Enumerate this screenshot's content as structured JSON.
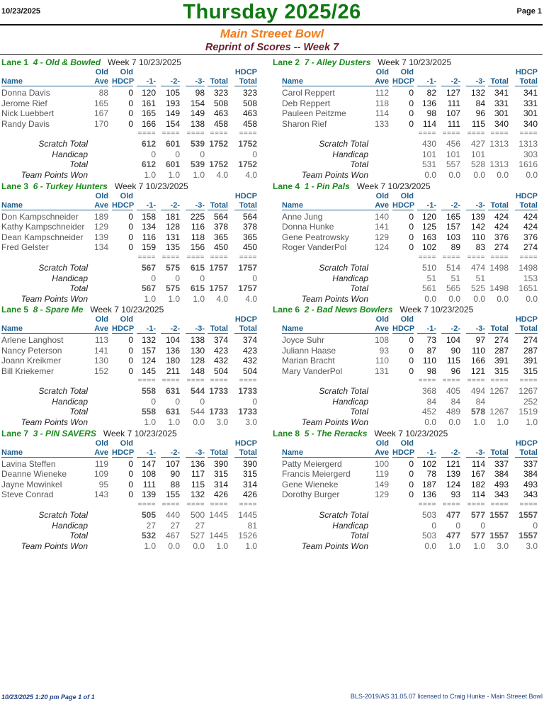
{
  "header": {
    "date": "10/23/2025",
    "title": "Thursday  2025/26",
    "page": "Page 1",
    "subtitle": "Main Streeet Bowl",
    "report": "Reprint of Scores -- Week 7"
  },
  "columns": {
    "name": "Name",
    "old_ave_top": "Old",
    "old_ave": "Ave",
    "old_hdcp_top": "Old",
    "old_hdcp": "HDCP",
    "g1": "-1-",
    "g2": "-2-",
    "g3": "-3-",
    "total": "Total",
    "hdcp_total_top": "HDCP",
    "hdcp_total": "Total",
    "separator": "===="
  },
  "summary_labels": {
    "scratch": "Scratch Total",
    "handicap": "Handicap",
    "total": "Total",
    "points": "Team Points Won"
  },
  "colors": {
    "title": "#0f7a12",
    "subtitle": "#ee7d1c",
    "report": "#6a1e2c",
    "lane_title": "#1a8a1a",
    "column_header": "#1e5e8c",
    "footer": "#1c3f86"
  },
  "lanes": [
    {
      "lane": "Lane 1",
      "team": "4 - Old & Bowled",
      "week": "Week 7  10/23/2025",
      "players": [
        {
          "name": "Donna Davis",
          "ave": "88",
          "hdcp": "0",
          "g1": "120",
          "g2": "105",
          "g3": "98",
          "total": "323",
          "hdcp_total": "323"
        },
        {
          "name": "Jerome Rief",
          "ave": "165",
          "hdcp": "0",
          "g1": "161",
          "g2": "193",
          "g3": "154",
          "total": "508",
          "hdcp_total": "508"
        },
        {
          "name": "Nick Luebbert",
          "ave": "167",
          "hdcp": "0",
          "g1": "165",
          "g2": "149",
          "g3": "149",
          "total": "463",
          "hdcp_total": "463"
        },
        {
          "name": "Randy Davis",
          "ave": "170",
          "hdcp": "0",
          "g1": "166",
          "g2": "154",
          "g3": "138",
          "total": "458",
          "hdcp_total": "458"
        }
      ],
      "scratch": {
        "values": [
          "612",
          "601",
          "539",
          "1752",
          "1752"
        ],
        "bold": [
          true,
          true,
          true,
          true,
          true
        ]
      },
      "handicap": {
        "values": [
          "0",
          "0",
          "0",
          "",
          "0"
        ],
        "bold": [
          false,
          false,
          false,
          false,
          false
        ]
      },
      "total": {
        "values": [
          "612",
          "601",
          "539",
          "1752",
          "1752"
        ],
        "bold": [
          true,
          true,
          true,
          true,
          true
        ]
      },
      "points": {
        "values": [
          "1.0",
          "1.0",
          "1.0",
          "4.0",
          "4.0"
        ],
        "bold": [
          false,
          false,
          false,
          false,
          false
        ]
      }
    },
    {
      "lane": "Lane 2",
      "team": "7 - Alley Dusters",
      "week": "Week 7  10/23/2025",
      "players": [
        {
          "name": "Carol Reppert",
          "ave": "112",
          "hdcp": "0",
          "g1": "82",
          "g2": "127",
          "g3": "132",
          "total": "341",
          "hdcp_total": "341"
        },
        {
          "name": "Deb Reppert",
          "ave": "118",
          "hdcp": "0",
          "g1": "136",
          "g2": "111",
          "g3": "84",
          "total": "331",
          "hdcp_total": "331"
        },
        {
          "name": "Pauleen Peitzme",
          "ave": "114",
          "hdcp": "0",
          "g1": "98",
          "g2": "107",
          "g3": "96",
          "total": "301",
          "hdcp_total": "301"
        },
        {
          "name": "Sharon Rief",
          "ave": "133",
          "hdcp": "0",
          "g1": "114",
          "g2": "111",
          "g3": "115",
          "total": "340",
          "hdcp_total": "340"
        }
      ],
      "scratch": {
        "values": [
          "430",
          "456",
          "427",
          "1313",
          "1313"
        ],
        "bold": [
          false,
          false,
          false,
          false,
          false
        ]
      },
      "handicap": {
        "values": [
          "101",
          "101",
          "101",
          "",
          "303"
        ],
        "bold": [
          false,
          false,
          false,
          false,
          false
        ]
      },
      "total": {
        "values": [
          "531",
          "557",
          "528",
          "1313",
          "1616"
        ],
        "bold": [
          false,
          false,
          false,
          false,
          false
        ]
      },
      "points": {
        "values": [
          "0.0",
          "0.0",
          "0.0",
          "0.0",
          "0.0"
        ],
        "bold": [
          false,
          false,
          false,
          false,
          false
        ]
      }
    },
    {
      "lane": "Lane 3",
      "team": "6 - Turkey Hunters",
      "week": "Week 7  10/23/2025",
      "players": [
        {
          "name": "Don Kampschneider",
          "ave": "189",
          "hdcp": "0",
          "g1": "158",
          "g2": "181",
          "g3": "225",
          "total": "564",
          "hdcp_total": "564"
        },
        {
          "name": "Kathy Kampschneider",
          "ave": "129",
          "hdcp": "0",
          "g1": "134",
          "g2": "128",
          "g3": "116",
          "total": "378",
          "hdcp_total": "378"
        },
        {
          "name": "Dean Kampschneider",
          "ave": "139",
          "hdcp": "0",
          "g1": "116",
          "g2": "131",
          "g3": "118",
          "total": "365",
          "hdcp_total": "365"
        },
        {
          "name": "Fred Gelster",
          "ave": "134",
          "hdcp": "0",
          "g1": "159",
          "g2": "135",
          "g3": "156",
          "total": "450",
          "hdcp_total": "450"
        }
      ],
      "scratch": {
        "values": [
          "567",
          "575",
          "615",
          "1757",
          "1757"
        ],
        "bold": [
          true,
          true,
          true,
          true,
          true
        ]
      },
      "handicap": {
        "values": [
          "0",
          "0",
          "0",
          "",
          "0"
        ],
        "bold": [
          false,
          false,
          false,
          false,
          false
        ]
      },
      "total": {
        "values": [
          "567",
          "575",
          "615",
          "1757",
          "1757"
        ],
        "bold": [
          true,
          true,
          true,
          true,
          true
        ]
      },
      "points": {
        "values": [
          "1.0",
          "1.0",
          "1.0",
          "4.0",
          "4.0"
        ],
        "bold": [
          false,
          false,
          false,
          false,
          false
        ]
      }
    },
    {
      "lane": "Lane 4",
      "team": "1 - Pin Pals",
      "week": "Week 7  10/23/2025",
      "players": [
        {
          "name": "Anne Jung",
          "ave": "140",
          "hdcp": "0",
          "g1": "120",
          "g2": "165",
          "g3": "139",
          "total": "424",
          "hdcp_total": "424"
        },
        {
          "name": "Donna Hunke",
          "ave": "141",
          "hdcp": "0",
          "g1": "125",
          "g2": "157",
          "g3": "142",
          "total": "424",
          "hdcp_total": "424"
        },
        {
          "name": "Gene Peatrowsky",
          "ave": "129",
          "hdcp": "0",
          "g1": "163",
          "g2": "103",
          "g3": "110",
          "total": "376",
          "hdcp_total": "376"
        },
        {
          "name": "Roger VanderPol",
          "ave": "124",
          "hdcp": "0",
          "g1": "102",
          "g2": "89",
          "g3": "83",
          "total": "274",
          "hdcp_total": "274"
        }
      ],
      "scratch": {
        "values": [
          "510",
          "514",
          "474",
          "1498",
          "1498"
        ],
        "bold": [
          false,
          false,
          false,
          false,
          false
        ]
      },
      "handicap": {
        "values": [
          "51",
          "51",
          "51",
          "",
          "153"
        ],
        "bold": [
          false,
          false,
          false,
          false,
          false
        ]
      },
      "total": {
        "values": [
          "561",
          "565",
          "525",
          "1498",
          "1651"
        ],
        "bold": [
          false,
          false,
          false,
          false,
          false
        ]
      },
      "points": {
        "values": [
          "0.0",
          "0.0",
          "0.0",
          "0.0",
          "0.0"
        ],
        "bold": [
          false,
          false,
          false,
          false,
          false
        ]
      }
    },
    {
      "lane": "Lane 5",
      "team": "8 - Spare Me",
      "week": "Week 7  10/23/2025",
      "players": [
        {
          "name": "Arlene Langhost",
          "ave": "113",
          "hdcp": "0",
          "g1": "132",
          "g2": "104",
          "g3": "138",
          "total": "374",
          "hdcp_total": "374"
        },
        {
          "name": "Nancy Peterson",
          "ave": "141",
          "hdcp": "0",
          "g1": "157",
          "g2": "136",
          "g3": "130",
          "total": "423",
          "hdcp_total": "423"
        },
        {
          "name": "Joann Kreikmer",
          "ave": "130",
          "hdcp": "0",
          "g1": "124",
          "g2": "180",
          "g3": "128",
          "total": "432",
          "hdcp_total": "432"
        },
        {
          "name": "Bill Kriekemer",
          "ave": "152",
          "hdcp": "0",
          "g1": "145",
          "g2": "211",
          "g3": "148",
          "total": "504",
          "hdcp_total": "504"
        }
      ],
      "scratch": {
        "values": [
          "558",
          "631",
          "544",
          "1733",
          "1733"
        ],
        "bold": [
          true,
          true,
          true,
          true,
          true
        ]
      },
      "handicap": {
        "values": [
          "0",
          "0",
          "0",
          "",
          "0"
        ],
        "bold": [
          false,
          false,
          false,
          false,
          false
        ]
      },
      "total": {
        "values": [
          "558",
          "631",
          "544",
          "1733",
          "1733"
        ],
        "bold": [
          true,
          true,
          false,
          true,
          true
        ]
      },
      "points": {
        "values": [
          "1.0",
          "1.0",
          "0.0",
          "3.0",
          "3.0"
        ],
        "bold": [
          false,
          false,
          false,
          false,
          false
        ]
      }
    },
    {
      "lane": "Lane 6",
      "team": "2 - Bad News Bowlers",
      "week": "Week 7  10/23/2025",
      "players": [
        {
          "name": "Joyce Suhr",
          "ave": "108",
          "hdcp": "0",
          "g1": "73",
          "g2": "104",
          "g3": "97",
          "total": "274",
          "hdcp_total": "274"
        },
        {
          "name": "Juliann Haase",
          "ave": "93",
          "hdcp": "0",
          "g1": "87",
          "g2": "90",
          "g3": "110",
          "total": "287",
          "hdcp_total": "287"
        },
        {
          "name": "Marian Bracht",
          "ave": "110",
          "hdcp": "0",
          "g1": "110",
          "g2": "115",
          "g3": "166",
          "total": "391",
          "hdcp_total": "391"
        },
        {
          "name": "Mary VanderPol",
          "ave": "131",
          "hdcp": "0",
          "g1": "98",
          "g2": "96",
          "g3": "121",
          "total": "315",
          "hdcp_total": "315"
        }
      ],
      "scratch": {
        "values": [
          "368",
          "405",
          "494",
          "1267",
          "1267"
        ],
        "bold": [
          false,
          false,
          false,
          false,
          false
        ]
      },
      "handicap": {
        "values": [
          "84",
          "84",
          "84",
          "",
          "252"
        ],
        "bold": [
          false,
          false,
          false,
          false,
          false
        ]
      },
      "total": {
        "values": [
          "452",
          "489",
          "578",
          "1267",
          "1519"
        ],
        "bold": [
          false,
          false,
          true,
          false,
          false
        ]
      },
      "points": {
        "values": [
          "0.0",
          "0.0",
          "1.0",
          "1.0",
          "1.0"
        ],
        "bold": [
          false,
          false,
          false,
          false,
          false
        ]
      }
    },
    {
      "lane": "Lane 7",
      "team": "3 - PIN SAVERS",
      "week": "Week 7  10/23/2025",
      "players": [
        {
          "name": "Lavina Steffen",
          "ave": "119",
          "hdcp": "0",
          "g1": "147",
          "g2": "107",
          "g3": "136",
          "total": "390",
          "hdcp_total": "390"
        },
        {
          "name": "Deanne Wieneke",
          "ave": "109",
          "hdcp": "0",
          "g1": "108",
          "g2": "90",
          "g3": "117",
          "total": "315",
          "hdcp_total": "315"
        },
        {
          "name": "Jayne Mowinkel",
          "ave": "95",
          "hdcp": "0",
          "g1": "111",
          "g2": "88",
          "g3": "115",
          "total": "314",
          "hdcp_total": "314"
        },
        {
          "name": "Steve Conrad",
          "ave": "143",
          "hdcp": "0",
          "g1": "139",
          "g2": "155",
          "g3": "132",
          "total": "426",
          "hdcp_total": "426"
        }
      ],
      "scratch": {
        "values": [
          "505",
          "440",
          "500",
          "1445",
          "1445"
        ],
        "bold": [
          true,
          false,
          false,
          false,
          false
        ]
      },
      "handicap": {
        "values": [
          "27",
          "27",
          "27",
          "",
          "81"
        ],
        "bold": [
          false,
          false,
          false,
          false,
          false
        ]
      },
      "total": {
        "values": [
          "532",
          "467",
          "527",
          "1445",
          "1526"
        ],
        "bold": [
          true,
          false,
          false,
          false,
          false
        ]
      },
      "points": {
        "values": [
          "1.0",
          "0.0",
          "0.0",
          "1.0",
          "1.0"
        ],
        "bold": [
          false,
          false,
          false,
          false,
          false
        ]
      }
    },
    {
      "lane": "Lane 8",
      "team": "5 - The Reracks",
      "week": "Week 7  10/23/2025",
      "players": [
        {
          "name": "Patty Meiergerd",
          "ave": "100",
          "hdcp": "0",
          "g1": "102",
          "g2": "121",
          "g3": "114",
          "total": "337",
          "hdcp_total": "337"
        },
        {
          "name": "Francis Meiergerd",
          "ave": "119",
          "hdcp": "0",
          "g1": "78",
          "g2": "139",
          "g3": "167",
          "total": "384",
          "hdcp_total": "384"
        },
        {
          "name": "Gene Wieneke",
          "ave": "149",
          "hdcp": "0",
          "g1": "187",
          "g2": "124",
          "g3": "182",
          "total": "493",
          "hdcp_total": "493"
        },
        {
          "name": "Dorothy Burger",
          "ave": "129",
          "hdcp": "0",
          "g1": "136",
          "g2": "93",
          "g3": "114",
          "total": "343",
          "hdcp_total": "343"
        }
      ],
      "scratch": {
        "values": [
          "503",
          "477",
          "577",
          "1557",
          "1557"
        ],
        "bold": [
          false,
          true,
          true,
          true,
          true
        ]
      },
      "handicap": {
        "values": [
          "0",
          "0",
          "0",
          "",
          "0"
        ],
        "bold": [
          false,
          false,
          false,
          false,
          false
        ]
      },
      "total": {
        "values": [
          "503",
          "477",
          "577",
          "1557",
          "1557"
        ],
        "bold": [
          false,
          true,
          true,
          true,
          true
        ]
      },
      "points": {
        "values": [
          "0.0",
          "1.0",
          "1.0",
          "3.0",
          "3.0"
        ],
        "bold": [
          false,
          false,
          false,
          false,
          false
        ]
      }
    }
  ],
  "footer": {
    "left": "10/23/2025  1:20 pm  Page 1 of 1",
    "right": "BLS-2019/AS 31.05.07 licensed to Craig Hunke - Main Streeet Bowl"
  }
}
